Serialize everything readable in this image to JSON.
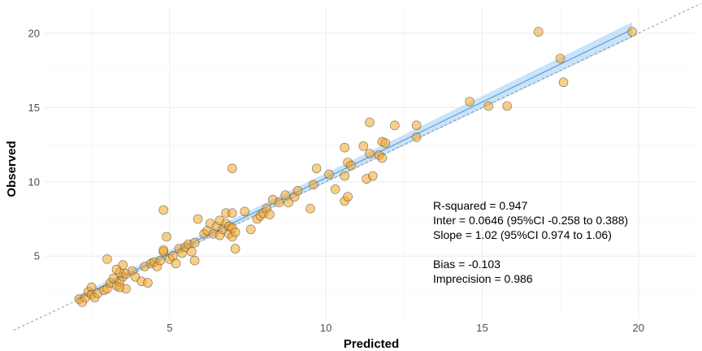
{
  "chart_data": {
    "type": "scatter",
    "title": "",
    "xlabel": "Predicted",
    "ylabel": "Observed",
    "xlim": [
      1.0,
      21.8
    ],
    "ylim": [
      0.8,
      21.8
    ],
    "xticks": [
      5,
      10,
      15,
      20
    ],
    "yticks": [
      5,
      10,
      15,
      20
    ],
    "grid": true,
    "point_color": "#f5a623",
    "point_edge": "#555555",
    "fit_color": "#4a90d9",
    "band_color": "#b7d9f5",
    "identity_color": "#888888",
    "fit": {
      "intercept": 0.0646,
      "slope": 1.02
    },
    "band": {
      "lower": [
        [
          2.0,
          1.97
        ],
        [
          19.8,
          19.7
        ]
      ],
      "upper": [
        [
          2.0,
          2.3
        ],
        [
          19.8,
          20.75
        ]
      ]
    },
    "identity_line": {
      "x": [
        0.0,
        22.0
      ],
      "y": [
        0.0,
        22.0
      ]
    },
    "points": [
      [
        2.1,
        2.1
      ],
      [
        2.2,
        1.9
      ],
      [
        2.3,
        2.2
      ],
      [
        2.4,
        2.6
      ],
      [
        2.5,
        2.9
      ],
      [
        2.5,
        2.4
      ],
      [
        2.6,
        2.2
      ],
      [
        2.7,
        2.5
      ],
      [
        2.9,
        2.7
      ],
      [
        3.0,
        2.8
      ],
      [
        3.1,
        3.2
      ],
      [
        3.3,
        3.0
      ],
      [
        3.4,
        3.3
      ],
      [
        3.5,
        3.6
      ],
      [
        3.4,
        3.9
      ],
      [
        3.5,
        4.4
      ],
      [
        3.3,
        4.1
      ],
      [
        3.6,
        3.8
      ],
      [
        3.8,
        4.0
      ],
      [
        3.9,
        3.6
      ],
      [
        3.2,
        3.5
      ],
      [
        3.0,
        4.8
      ],
      [
        3.6,
        2.8
      ],
      [
        3.4,
        2.9
      ],
      [
        4.1,
        3.3
      ],
      [
        4.2,
        4.3
      ],
      [
        4.3,
        3.2
      ],
      [
        4.4,
        4.5
      ],
      [
        4.5,
        4.6
      ],
      [
        4.6,
        4.3
      ],
      [
        4.7,
        4.7
      ],
      [
        4.8,
        5.3
      ],
      [
        4.8,
        5.4
      ],
      [
        4.9,
        6.3
      ],
      [
        4.8,
        8.1
      ],
      [
        5.0,
        4.8
      ],
      [
        5.1,
        5.0
      ],
      [
        5.2,
        4.5
      ],
      [
        5.3,
        5.5
      ],
      [
        5.4,
        5.2
      ],
      [
        5.5,
        5.6
      ],
      [
        5.6,
        5.8
      ],
      [
        5.7,
        5.3
      ],
      [
        5.8,
        5.9
      ],
      [
        5.8,
        4.7
      ],
      [
        5.9,
        7.5
      ],
      [
        6.1,
        6.5
      ],
      [
        6.2,
        6.7
      ],
      [
        6.3,
        7.2
      ],
      [
        6.4,
        6.5
      ],
      [
        6.5,
        7.0
      ],
      [
        6.6,
        6.4
      ],
      [
        6.6,
        7.4
      ],
      [
        6.7,
        6.8
      ],
      [
        6.8,
        7.2
      ],
      [
        6.8,
        7.9
      ],
      [
        6.9,
        6.5
      ],
      [
        6.9,
        7.0
      ],
      [
        7.0,
        6.3
      ],
      [
        7.0,
        6.9
      ],
      [
        7.0,
        7.9
      ],
      [
        7.0,
        10.9
      ],
      [
        7.1,
        5.5
      ],
      [
        7.1,
        6.6
      ],
      [
        7.4,
        8.0
      ],
      [
        7.6,
        6.8
      ],
      [
        7.8,
        7.5
      ],
      [
        7.9,
        7.7
      ],
      [
        8.0,
        7.9
      ],
      [
        8.1,
        8.2
      ],
      [
        8.2,
        7.8
      ],
      [
        8.3,
        8.8
      ],
      [
        8.5,
        8.6
      ],
      [
        8.7,
        9.1
      ],
      [
        8.8,
        8.6
      ],
      [
        9.0,
        9.0
      ],
      [
        9.1,
        9.4
      ],
      [
        9.5,
        8.2
      ],
      [
        9.6,
        9.8
      ],
      [
        9.7,
        10.9
      ],
      [
        10.1,
        10.5
      ],
      [
        10.3,
        9.5
      ],
      [
        10.6,
        8.7
      ],
      [
        10.6,
        10.4
      ],
      [
        10.7,
        9.0
      ],
      [
        10.7,
        11.3
      ],
      [
        10.6,
        12.3
      ],
      [
        10.8,
        11.1
      ],
      [
        11.2,
        12.4
      ],
      [
        11.3,
        10.2
      ],
      [
        11.5,
        10.4
      ],
      [
        11.4,
        11.9
      ],
      [
        11.7,
        11.8
      ],
      [
        11.4,
        14.0
      ],
      [
        11.8,
        12.7
      ],
      [
        11.9,
        12.6
      ],
      [
        11.8,
        11.6
      ],
      [
        12.2,
        13.8
      ],
      [
        12.9,
        13.0
      ],
      [
        12.9,
        13.8
      ],
      [
        14.6,
        15.4
      ],
      [
        15.2,
        15.1
      ],
      [
        15.8,
        15.1
      ],
      [
        16.8,
        20.1
      ],
      [
        17.5,
        18.3
      ],
      [
        17.6,
        16.7
      ],
      [
        19.8,
        20.1
      ]
    ],
    "annotations": [
      "R-squared = 0.947",
      "Inter = 0.0646 (95%CI -0.258 to 0.388)",
      "Slope = 1.02 (95%CI 0.974 to 1.06)",
      "Bias = -0.103",
      "Imprecision  = 0.986"
    ]
  }
}
